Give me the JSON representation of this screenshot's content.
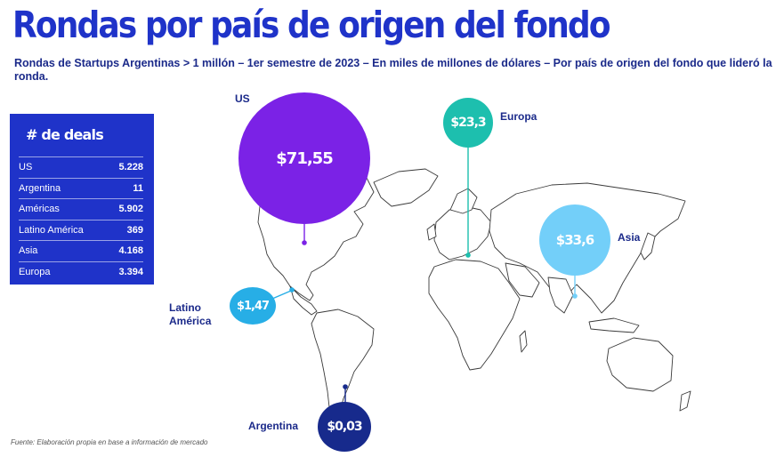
{
  "title": "Rondas por país de origen del fondo",
  "subtitle": "Rondas de Startups Argentinas > 1 millón – 1er semestre de 2023 – En miles de millones de dólares – Por país de origen del fondo que lideró la ronda.",
  "deals_table": {
    "title": "# de deals",
    "rows": [
      {
        "label": "US",
        "value": "5.228"
      },
      {
        "label": "Argentina",
        "value": "11"
      },
      {
        "label": "Américas",
        "value": "5.902"
      },
      {
        "label": "Latino América",
        "value": "369"
      },
      {
        "label": "Asia",
        "value": "4.168"
      },
      {
        "label": "Europa",
        "value": "3.394"
      }
    ]
  },
  "regions": {
    "us": {
      "label": "US",
      "amount": "$71,55",
      "value": 71.55,
      "color": "#7b22e6"
    },
    "europa": {
      "label": "Europa",
      "amount": "$23,3",
      "value": 23.3,
      "color": "#1dbfae"
    },
    "asia": {
      "label": "Asia",
      "amount": "$33,6",
      "value": 33.6,
      "color": "#73cff9"
    },
    "latam": {
      "label1": "Latino",
      "label2": "América",
      "amount": "$1,47",
      "value": 1.47,
      "color": "#27aee6"
    },
    "argentina": {
      "label": "Argentina",
      "amount": "$0,03",
      "value": 0.03,
      "color": "#172a8c"
    }
  },
  "source": "Fuente: Elaboración propia en base a información de mercado"
}
